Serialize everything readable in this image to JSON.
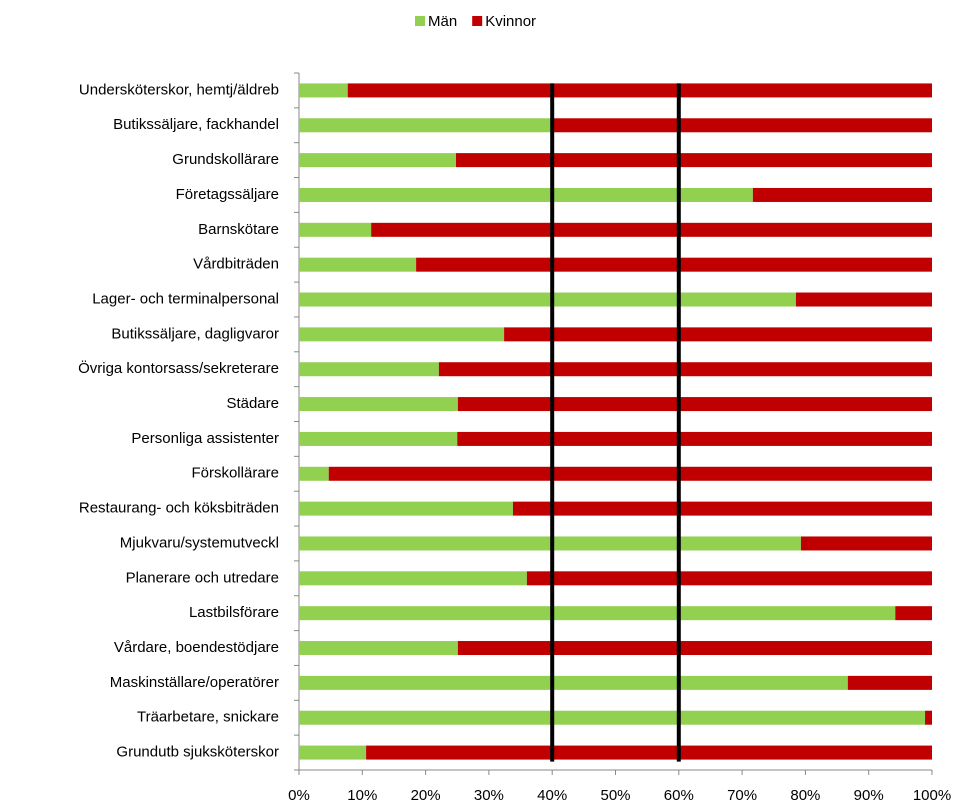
{
  "chart_data": {
    "type": "stacked_barh",
    "categories": [
      "Undersköterskor, hemtj/äldreb",
      "Butikssäljare, fackhandel",
      "Grundskollärare",
      "Företagssäljare",
      "Barnskötare",
      "Vårdbiträden",
      "Lager- och terminalpersonal",
      "Butikssäljare, dagligvaror",
      "Övriga kontorsass/sekreterare",
      "Städare",
      "Personliga assistenter",
      "Förskollärare",
      "Restaurang- och köksbiträden",
      "Mjukvaru/systemutveckl",
      "Planerare och utredare",
      "Lastbilsförare",
      "Vårdare, boendestödjare",
      "Maskinställare/operatörer",
      "Träarbetare, snickare",
      "Grundutb sjuksköterskor"
    ],
    "series": [
      {
        "name": "Män",
        "color": "#92d050",
        "values": [
          7.7,
          40,
          24.8,
          71.7,
          11.4,
          18.5,
          78.5,
          32.4,
          22.1,
          25.1,
          25,
          4.7,
          33.8,
          79.3,
          36,
          94.2,
          25.1,
          86.7,
          98.9,
          10.6
        ]
      },
      {
        "name": "Kvinnor",
        "color": "#c00000",
        "values": [
          92.3,
          60,
          75.2,
          28.3,
          88.6,
          81.5,
          21.5,
          67.6,
          77.9,
          74.9,
          75,
          95.3,
          66.2,
          20.7,
          64,
          5.8,
          74.9,
          13.3,
          1.1,
          89.4
        ]
      }
    ],
    "xlim": [
      0,
      100
    ],
    "xticks": [
      {
        "value": 0,
        "label": "0%"
      },
      {
        "value": 10,
        "label": "10%"
      },
      {
        "value": 20,
        "label": "20%"
      },
      {
        "value": 30,
        "label": "30%"
      },
      {
        "value": 40,
        "label": "40%"
      },
      {
        "value": 50,
        "label": "50%"
      },
      {
        "value": 60,
        "label": "60%"
      },
      {
        "value": 70,
        "label": "70%"
      },
      {
        "value": 80,
        "label": "80%"
      },
      {
        "value": 90,
        "label": "90%"
      },
      {
        "value": 100,
        "label": "100%"
      }
    ],
    "reference_lines": [
      40,
      60
    ],
    "legend": "top"
  }
}
